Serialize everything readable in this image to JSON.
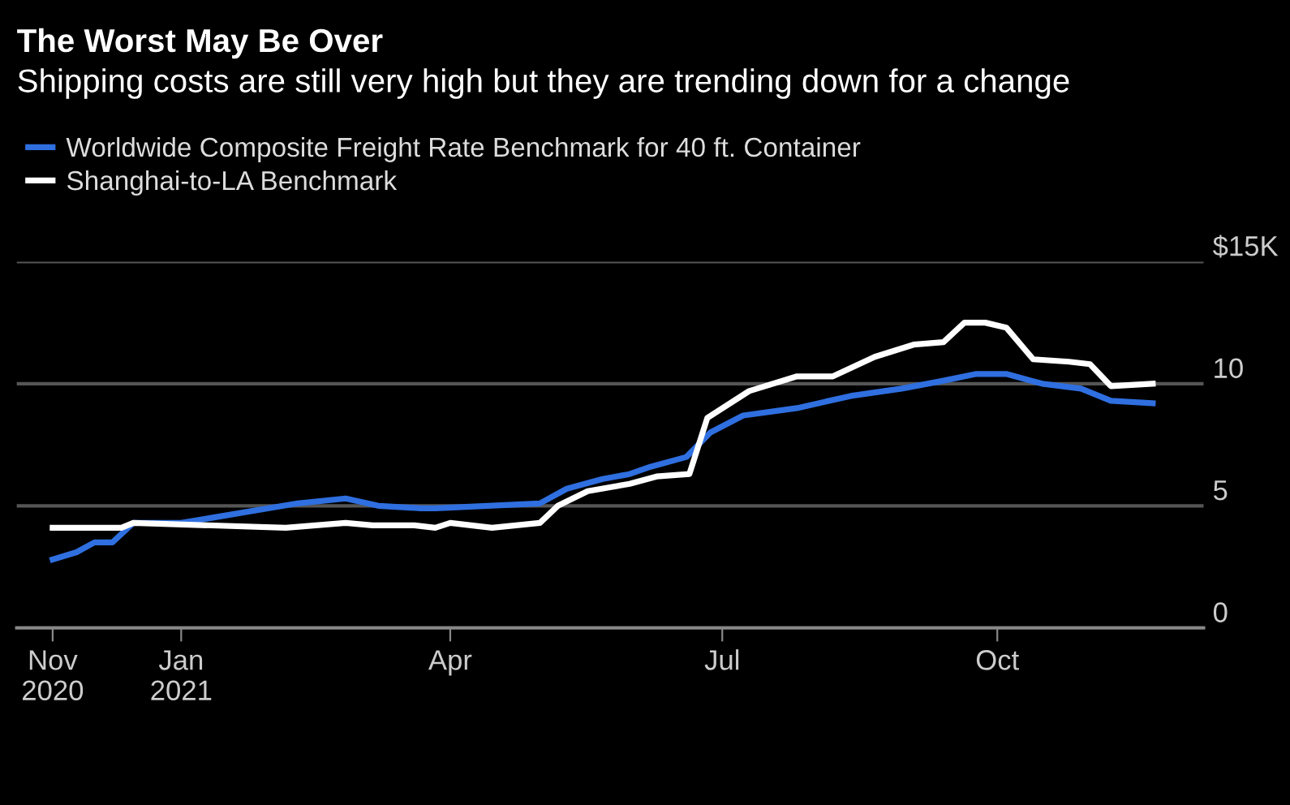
{
  "chart_data": {
    "type": "line",
    "title": "The Worst May Be Over",
    "subtitle": "Shipping costs are still very high but they are trending down for a change",
    "series": [
      {
        "name": "Worldwide Composite Freight Rate Benchmark for 40 ft. Container",
        "color": "#2f6fe0",
        "x": [
          "2020-11-19",
          "2020-11-27",
          "2020-12-03",
          "2020-12-09",
          "2020-12-16",
          "2021-01-01",
          "2021-02-09",
          "2021-02-25",
          "2021-03-08",
          "2021-03-22",
          "2021-03-27",
          "2021-05-01",
          "2021-05-10",
          "2021-05-22",
          "2021-05-31",
          "2021-06-07",
          "2021-06-19",
          "2021-06-27",
          "2021-07-08",
          "2021-07-26",
          "2021-08-13",
          "2021-08-30",
          "2021-09-12",
          "2021-09-24",
          "2021-10-04",
          "2021-10-16",
          "2021-10-29",
          "2021-11-08",
          "2021-11-22"
        ],
        "values": [
          2.8,
          3.1,
          3.5,
          3.5,
          4.3,
          4.3,
          5.1,
          5.3,
          5.0,
          4.9,
          4.9,
          5.1,
          5.7,
          6.1,
          6.3,
          6.6,
          7.0,
          8.0,
          8.7,
          9.0,
          9.5,
          9.8,
          10.1,
          10.4,
          10.4,
          10.0,
          9.8,
          9.3,
          9.2
        ]
      },
      {
        "name": "Shanghai-to-LA Benchmark",
        "color": "#ffffff",
        "x": [
          "2020-11-19",
          "2020-12-12",
          "2020-12-16",
          "2021-02-05",
          "2021-02-25",
          "2021-03-06",
          "2021-03-20",
          "2021-03-27",
          "2021-04-01",
          "2021-04-15",
          "2021-05-01",
          "2021-05-07",
          "2021-05-17",
          "2021-05-31",
          "2021-06-09",
          "2021-06-20",
          "2021-06-26",
          "2021-07-10",
          "2021-07-26",
          "2021-08-07",
          "2021-08-21",
          "2021-09-03",
          "2021-09-13",
          "2021-09-20",
          "2021-09-27",
          "2021-10-04",
          "2021-10-13",
          "2021-10-25",
          "2021-11-01",
          "2021-11-08",
          "2021-11-22"
        ],
        "values": [
          4.1,
          4.1,
          4.3,
          4.1,
          4.3,
          4.2,
          4.2,
          4.1,
          4.3,
          4.1,
          4.3,
          5.0,
          5.6,
          5.9,
          6.2,
          6.3,
          8.6,
          9.7,
          10.3,
          10.3,
          11.1,
          11.6,
          11.7,
          12.5,
          12.5,
          12.3,
          11.0,
          10.9,
          10.8,
          9.9,
          10.0
        ]
      }
    ],
    "xlim": [
      "2020-11-07",
      "2021-12-09"
    ],
    "xticks": [
      {
        "value": "2020-11-19",
        "label": "Nov\n2020"
      },
      {
        "value": "2021-01-01",
        "label": "Jan\n2021"
      },
      {
        "value": "2021-04-01",
        "label": "Apr"
      },
      {
        "value": "2021-07-01",
        "label": "Jul"
      },
      {
        "value": "2021-10-01",
        "label": "Oct"
      }
    ],
    "ylim": [
      0,
      15
    ],
    "yticks": [
      0,
      5,
      10,
      {
        "value": 15,
        "label": "$15K"
      }
    ],
    "grid": "y",
    "legend": "top left",
    "marker": "none",
    "line_style": "solid"
  }
}
